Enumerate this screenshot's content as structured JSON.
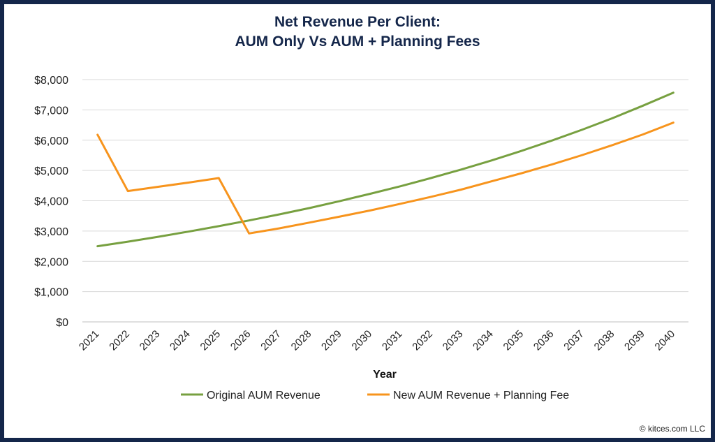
{
  "chart_data": {
    "type": "line",
    "title_line1": "Net Revenue Per Client:",
    "title_line2": "AUM Only Vs AUM + Planning Fees",
    "xlabel": "Year",
    "ylabel": "",
    "ylim": [
      0,
      8000
    ],
    "y_ticks": [
      "$0",
      "$1,000",
      "$2,000",
      "$3,000",
      "$4,000",
      "$5,000",
      "$6,000",
      "$7,000",
      "$8,000"
    ],
    "y_tick_values": [
      0,
      1000,
      2000,
      3000,
      4000,
      5000,
      6000,
      7000,
      8000
    ],
    "grid": true,
    "legend_position": "bottom",
    "x": [
      "2021",
      "2022",
      "2023",
      "2024",
      "2025",
      "2026",
      "2027",
      "2028",
      "2029",
      "2030",
      "2031",
      "2032",
      "2033",
      "2034",
      "2035",
      "2036",
      "2037",
      "2038",
      "2039",
      "2040"
    ],
    "series": [
      {
        "name": "Original AUM Revenue",
        "color": "#77a040",
        "values": [
          2500,
          2650,
          2810,
          2980,
          3160,
          3350,
          3550,
          3760,
          3990,
          4230,
          4480,
          4750,
          5030,
          5330,
          5650,
          5990,
          6350,
          6730,
          7140,
          7570
        ]
      },
      {
        "name": "New AUM Revenue + Planning Fee",
        "color": "#f7941d",
        "values": [
          6180,
          4320,
          4460,
          4600,
          4750,
          2920,
          3090,
          3280,
          3480,
          3680,
          3900,
          4130,
          4370,
          4640,
          4910,
          5200,
          5510,
          5840,
          6190,
          6580
        ]
      }
    ]
  },
  "footer": {
    "copyright": "© kitces.com LLC"
  }
}
